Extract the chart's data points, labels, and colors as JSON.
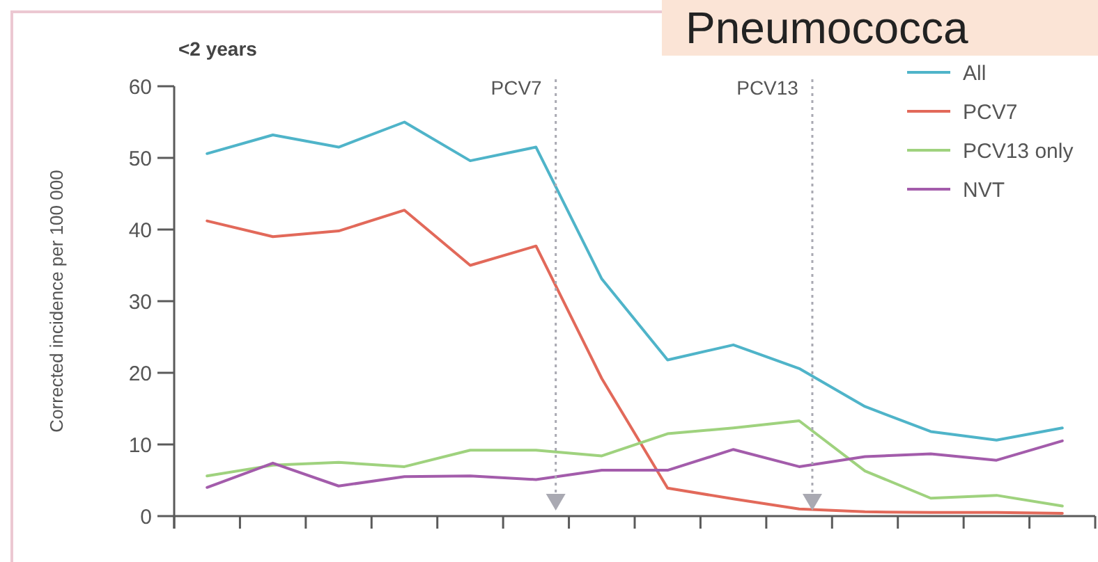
{
  "chart_data": {
    "type": "line",
    "title": "<2 years",
    "ylabel": "Corrected incidence per 100 000",
    "annotations": [
      "Pneumococca",
      "PCV7",
      "PCV13"
    ],
    "categories": [
      null,
      null,
      null,
      null,
      null,
      null,
      null,
      null,
      null,
      null,
      null,
      null,
      null,
      null
    ],
    "series": [
      {
        "name": "All",
        "color": "#4fb4c9",
        "values": [
          50.6,
          53.2,
          51.5,
          55.0,
          49.6,
          51.5,
          33.1,
          21.8,
          23.9,
          20.6,
          15.3,
          11.8,
          10.6,
          12.3
        ]
      },
      {
        "name": "PCV7",
        "color": "#e2695a",
        "values": [
          41.2,
          39.0,
          39.8,
          42.7,
          35.0,
          37.7,
          19.2,
          3.9,
          2.4,
          1.0,
          0.6,
          0.5,
          0.5,
          0.4
        ]
      },
      {
        "name": "PCV13 only",
        "color": "#9fd27e",
        "values": [
          5.6,
          7.1,
          7.5,
          6.9,
          9.2,
          9.2,
          8.4,
          11.5,
          12.3,
          13.3,
          6.3,
          2.5,
          2.9,
          1.4
        ]
      },
      {
        "name": "NVT",
        "color": "#a35cab",
        "values": [
          4.0,
          7.4,
          4.2,
          5.5,
          5.6,
          5.1,
          6.4,
          6.4,
          9.3,
          6.9,
          8.3,
          8.7,
          7.8,
          10.5
        ]
      }
    ],
    "ylim": [
      0,
      60
    ],
    "yticks": [
      0,
      10,
      20,
      30,
      40,
      50,
      60
    ],
    "tick_labels": "y",
    "legend": "top right"
  }
}
